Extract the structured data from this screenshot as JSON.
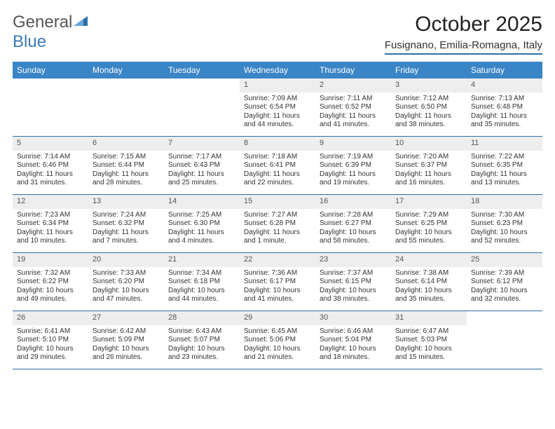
{
  "logo": {
    "text1": "General",
    "text2": "Blue"
  },
  "title": "October 2025",
  "location": "Fusignano, Emilia-Romagna, Italy",
  "colors": {
    "header_bg": "#3a85c6",
    "accent_line": "#2f6fa8",
    "daynum_bg": "#eeeeee",
    "logo_blue": "#3a7ab8",
    "logo_gray": "#555555"
  },
  "day_headers": [
    "Sunday",
    "Monday",
    "Tuesday",
    "Wednesday",
    "Thursday",
    "Friday",
    "Saturday"
  ],
  "weeks": [
    [
      {
        "day": "",
        "lines": [
          "",
          "",
          "",
          ""
        ]
      },
      {
        "day": "",
        "lines": [
          "",
          "",
          "",
          ""
        ]
      },
      {
        "day": "",
        "lines": [
          "",
          "",
          "",
          ""
        ]
      },
      {
        "day": "1",
        "lines": [
          "Sunrise: 7:09 AM",
          "Sunset: 6:54 PM",
          "Daylight: 11 hours",
          "and 44 minutes."
        ]
      },
      {
        "day": "2",
        "lines": [
          "Sunrise: 7:11 AM",
          "Sunset: 6:52 PM",
          "Daylight: 11 hours",
          "and 41 minutes."
        ]
      },
      {
        "day": "3",
        "lines": [
          "Sunrise: 7:12 AM",
          "Sunset: 6:50 PM",
          "Daylight: 11 hours",
          "and 38 minutes."
        ]
      },
      {
        "day": "4",
        "lines": [
          "Sunrise: 7:13 AM",
          "Sunset: 6:48 PM",
          "Daylight: 11 hours",
          "and 35 minutes."
        ]
      }
    ],
    [
      {
        "day": "5",
        "lines": [
          "Sunrise: 7:14 AM",
          "Sunset: 6:46 PM",
          "Daylight: 11 hours",
          "and 31 minutes."
        ]
      },
      {
        "day": "6",
        "lines": [
          "Sunrise: 7:15 AM",
          "Sunset: 6:44 PM",
          "Daylight: 11 hours",
          "and 28 minutes."
        ]
      },
      {
        "day": "7",
        "lines": [
          "Sunrise: 7:17 AM",
          "Sunset: 6:43 PM",
          "Daylight: 11 hours",
          "and 25 minutes."
        ]
      },
      {
        "day": "8",
        "lines": [
          "Sunrise: 7:18 AM",
          "Sunset: 6:41 PM",
          "Daylight: 11 hours",
          "and 22 minutes."
        ]
      },
      {
        "day": "9",
        "lines": [
          "Sunrise: 7:19 AM",
          "Sunset: 6:39 PM",
          "Daylight: 11 hours",
          "and 19 minutes."
        ]
      },
      {
        "day": "10",
        "lines": [
          "Sunrise: 7:20 AM",
          "Sunset: 6:37 PM",
          "Daylight: 11 hours",
          "and 16 minutes."
        ]
      },
      {
        "day": "11",
        "lines": [
          "Sunrise: 7:22 AM",
          "Sunset: 6:35 PM",
          "Daylight: 11 hours",
          "and 13 minutes."
        ]
      }
    ],
    [
      {
        "day": "12",
        "lines": [
          "Sunrise: 7:23 AM",
          "Sunset: 6:34 PM",
          "Daylight: 11 hours",
          "and 10 minutes."
        ]
      },
      {
        "day": "13",
        "lines": [
          "Sunrise: 7:24 AM",
          "Sunset: 6:32 PM",
          "Daylight: 11 hours",
          "and 7 minutes."
        ]
      },
      {
        "day": "14",
        "lines": [
          "Sunrise: 7:25 AM",
          "Sunset: 6:30 PM",
          "Daylight: 11 hours",
          "and 4 minutes."
        ]
      },
      {
        "day": "15",
        "lines": [
          "Sunrise: 7:27 AM",
          "Sunset: 6:28 PM",
          "Daylight: 11 hours",
          "and 1 minute."
        ]
      },
      {
        "day": "16",
        "lines": [
          "Sunrise: 7:28 AM",
          "Sunset: 6:27 PM",
          "Daylight: 10 hours",
          "and 58 minutes."
        ]
      },
      {
        "day": "17",
        "lines": [
          "Sunrise: 7:29 AM",
          "Sunset: 6:25 PM",
          "Daylight: 10 hours",
          "and 55 minutes."
        ]
      },
      {
        "day": "18",
        "lines": [
          "Sunrise: 7:30 AM",
          "Sunset: 6:23 PM",
          "Daylight: 10 hours",
          "and 52 minutes."
        ]
      }
    ],
    [
      {
        "day": "19",
        "lines": [
          "Sunrise: 7:32 AM",
          "Sunset: 6:22 PM",
          "Daylight: 10 hours",
          "and 49 minutes."
        ]
      },
      {
        "day": "20",
        "lines": [
          "Sunrise: 7:33 AM",
          "Sunset: 6:20 PM",
          "Daylight: 10 hours",
          "and 47 minutes."
        ]
      },
      {
        "day": "21",
        "lines": [
          "Sunrise: 7:34 AM",
          "Sunset: 6:18 PM",
          "Daylight: 10 hours",
          "and 44 minutes."
        ]
      },
      {
        "day": "22",
        "lines": [
          "Sunrise: 7:36 AM",
          "Sunset: 6:17 PM",
          "Daylight: 10 hours",
          "and 41 minutes."
        ]
      },
      {
        "day": "23",
        "lines": [
          "Sunrise: 7:37 AM",
          "Sunset: 6:15 PM",
          "Daylight: 10 hours",
          "and 38 minutes."
        ]
      },
      {
        "day": "24",
        "lines": [
          "Sunrise: 7:38 AM",
          "Sunset: 6:14 PM",
          "Daylight: 10 hours",
          "and 35 minutes."
        ]
      },
      {
        "day": "25",
        "lines": [
          "Sunrise: 7:39 AM",
          "Sunset: 6:12 PM",
          "Daylight: 10 hours",
          "and 32 minutes."
        ]
      }
    ],
    [
      {
        "day": "26",
        "lines": [
          "Sunrise: 6:41 AM",
          "Sunset: 5:10 PM",
          "Daylight: 10 hours",
          "and 29 minutes."
        ]
      },
      {
        "day": "27",
        "lines": [
          "Sunrise: 6:42 AM",
          "Sunset: 5:09 PM",
          "Daylight: 10 hours",
          "and 26 minutes."
        ]
      },
      {
        "day": "28",
        "lines": [
          "Sunrise: 6:43 AM",
          "Sunset: 5:07 PM",
          "Daylight: 10 hours",
          "and 23 minutes."
        ]
      },
      {
        "day": "29",
        "lines": [
          "Sunrise: 6:45 AM",
          "Sunset: 5:06 PM",
          "Daylight: 10 hours",
          "and 21 minutes."
        ]
      },
      {
        "day": "30",
        "lines": [
          "Sunrise: 6:46 AM",
          "Sunset: 5:04 PM",
          "Daylight: 10 hours",
          "and 18 minutes."
        ]
      },
      {
        "day": "31",
        "lines": [
          "Sunrise: 6:47 AM",
          "Sunset: 5:03 PM",
          "Daylight: 10 hours",
          "and 15 minutes."
        ]
      },
      {
        "day": "",
        "lines": [
          "",
          "",
          "",
          ""
        ]
      }
    ]
  ]
}
